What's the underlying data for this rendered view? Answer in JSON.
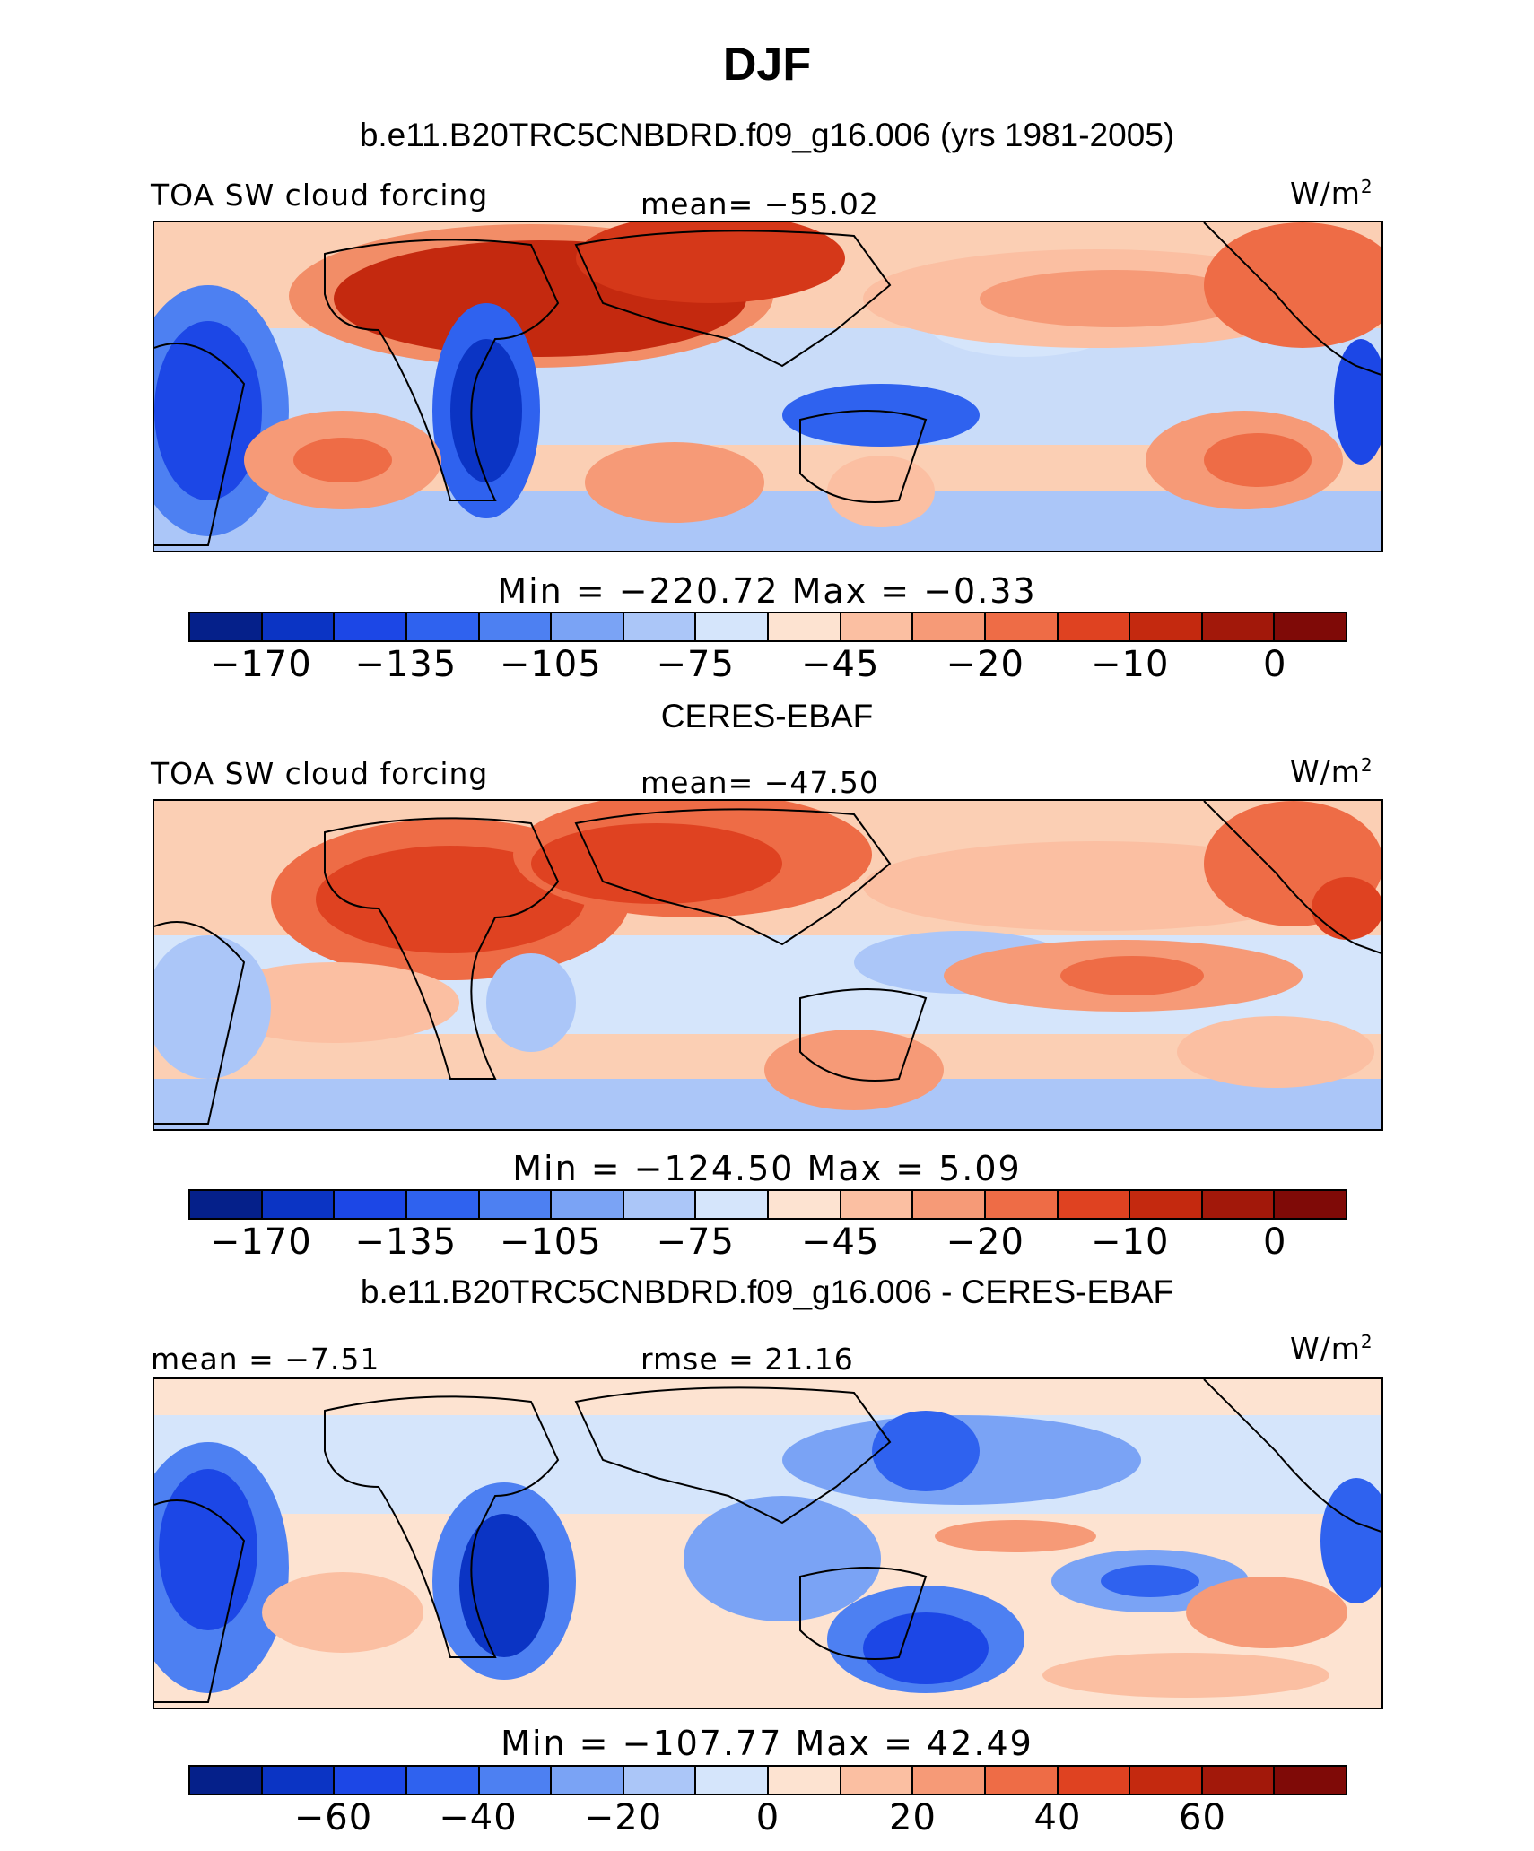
{
  "title": "DJF",
  "palette": [
    "#05208a",
    "#0b34c4",
    "#1c47e6",
    "#2f62ef",
    "#4d80f2",
    "#7aa3f5",
    "#abc6f8",
    "#d5e5fb",
    "#fde3d1",
    "#fbbfa2",
    "#f69a77",
    "#ee6c46",
    "#df4221",
    "#c4290f",
    "#a2180a",
    "#7f0a07"
  ],
  "panels": [
    {
      "header": "b.e11.B20TRC5CNBDRD.f09_g16.006 (yrs 1981-2005)",
      "left_label": "TOA SW cloud forcing",
      "center_label": "mean= −55.02",
      "units": "W/m",
      "units_sup": "2",
      "minmax": "Min  =  −220.72  Max  =   −0.33",
      "ticks": [
        "−170",
        "−135",
        "−105",
        "−75",
        "−45",
        "−20",
        "−10",
        "0"
      ]
    },
    {
      "header": "CERES-EBAF",
      "left_label": "TOA SW cloud forcing",
      "center_label": "mean= −47.50",
      "units": "W/m",
      "units_sup": "2",
      "minmax": "Min  =  −124.50  Max  =    5.09",
      "ticks": [
        "−170",
        "−135",
        "−105",
        "−75",
        "−45",
        "−20",
        "−10",
        "0"
      ]
    },
    {
      "header": "b.e11.B20TRC5CNBDRD.f09_g16.006 - CERES-EBAF",
      "left_label": "mean =  −7.51",
      "center_label": "rmse =  21.16",
      "units": "W/m",
      "units_sup": "2",
      "minmax": "Min  =  −107.77  Max  =  42.49",
      "ticks": [
        "−60",
        "−40",
        "−20",
        "0",
        "20",
        "40",
        "60"
      ]
    }
  ]
}
